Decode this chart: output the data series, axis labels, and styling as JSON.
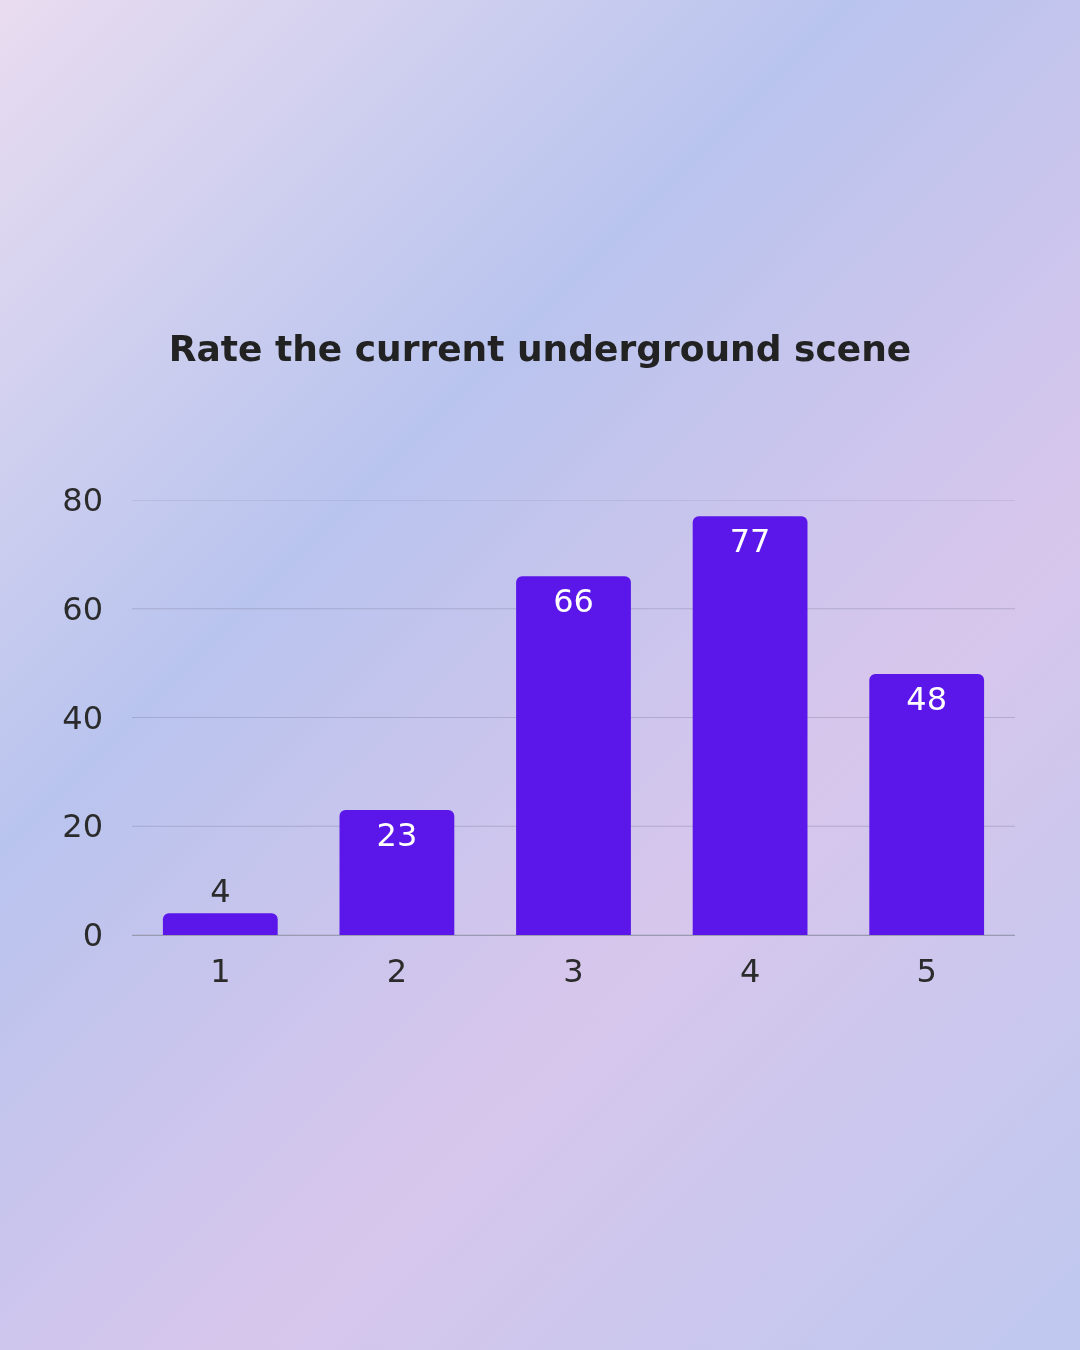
{
  "chart_data": {
    "type": "bar",
    "title": "Rate the current underground scene",
    "categories": [
      "1",
      "2",
      "3",
      "4",
      "5"
    ],
    "values": [
      4,
      23,
      66,
      77,
      48
    ],
    "color": "#5b16ea",
    "ylim": [
      0,
      80
    ],
    "yticks": [
      0,
      20,
      40,
      60,
      80
    ],
    "grid": "y",
    "data_labels": true
  }
}
